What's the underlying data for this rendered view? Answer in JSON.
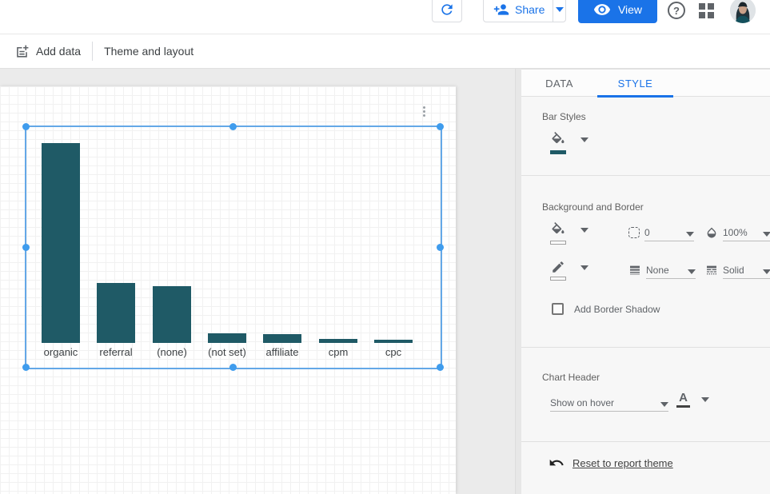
{
  "appbar": {
    "share_label": "Share",
    "view_label": "View",
    "help_glyph": "?"
  },
  "toolbar": {
    "add_data_label": "Add data",
    "theme_layout_label": "Theme and layout"
  },
  "panel": {
    "tabs": {
      "data": "DATA",
      "style": "STYLE",
      "active": "STYLE"
    },
    "bar_styles": {
      "title": "Bar Styles"
    },
    "background_border": {
      "title": "Background and Border",
      "corner_radius_value": "0",
      "opacity_value": "100%",
      "border_weight_value": "None",
      "border_style_value": "Solid",
      "shadow_label": "Add Border Shadow",
      "shadow_checked": false
    },
    "chart_header": {
      "title": "Chart Header",
      "visibility_value": "Show on hover"
    },
    "reset_label": "Reset to report theme"
  },
  "chart_data": {
    "type": "bar",
    "categories": [
      "organic",
      "referral",
      "(none)",
      "(not set)",
      "affiliate",
      "cpm",
      "cpc"
    ],
    "values": [
      250,
      75,
      71,
      12,
      11,
      5,
      4
    ],
    "values_note": "relative bar heights in pixels; chart shows no value axis or data labels",
    "title": "",
    "xlabel": "",
    "ylabel": "",
    "legend": "none",
    "grid": "canvas dot-grid only, no chart gridlines",
    "bar_color": "#1f5a66"
  },
  "icons": [
    "refresh-icon",
    "person-add-icon",
    "eye-icon",
    "help-icon",
    "apps-grid-icon",
    "avatar",
    "add-data-icon",
    "paint-bucket-icon",
    "pencil-icon",
    "corner-radius-icon",
    "opacity-icon",
    "line-weight-icon",
    "line-style-icon",
    "dropdown-caret-icon",
    "checkbox",
    "undo-icon",
    "more-vert-icon"
  ],
  "colors": {
    "accent_blue": "#1a73e8",
    "bar_teal": "#1f5a66",
    "selection_blue": "#64a8e7",
    "workspace_gray": "#ebebeb",
    "icon_gray": "#5f6368"
  }
}
